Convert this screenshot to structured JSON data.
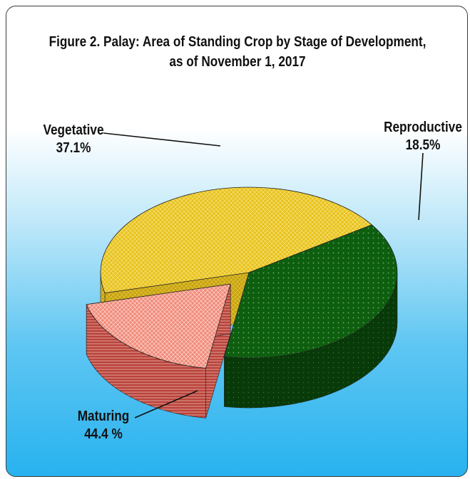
{
  "chart_data": {
    "type": "pie",
    "title": [
      "Figure 2. Palay: Area of Standing Crop by Stage of Development,",
      "as of  November 1, 2017"
    ],
    "slices": [
      {
        "category": "Vegetative",
        "label": "37.1%",
        "value": 37.1,
        "color": "#0e5e10"
      },
      {
        "category": "Reproductive",
        "label": "18.5%",
        "value": 18.5,
        "color": "#f08a7a"
      },
      {
        "category": "Maturing",
        "label": "44.4 %",
        "value": 44.4,
        "color": "#e8c21a"
      }
    ],
    "exploded": "Reproductive",
    "style": "3d"
  }
}
